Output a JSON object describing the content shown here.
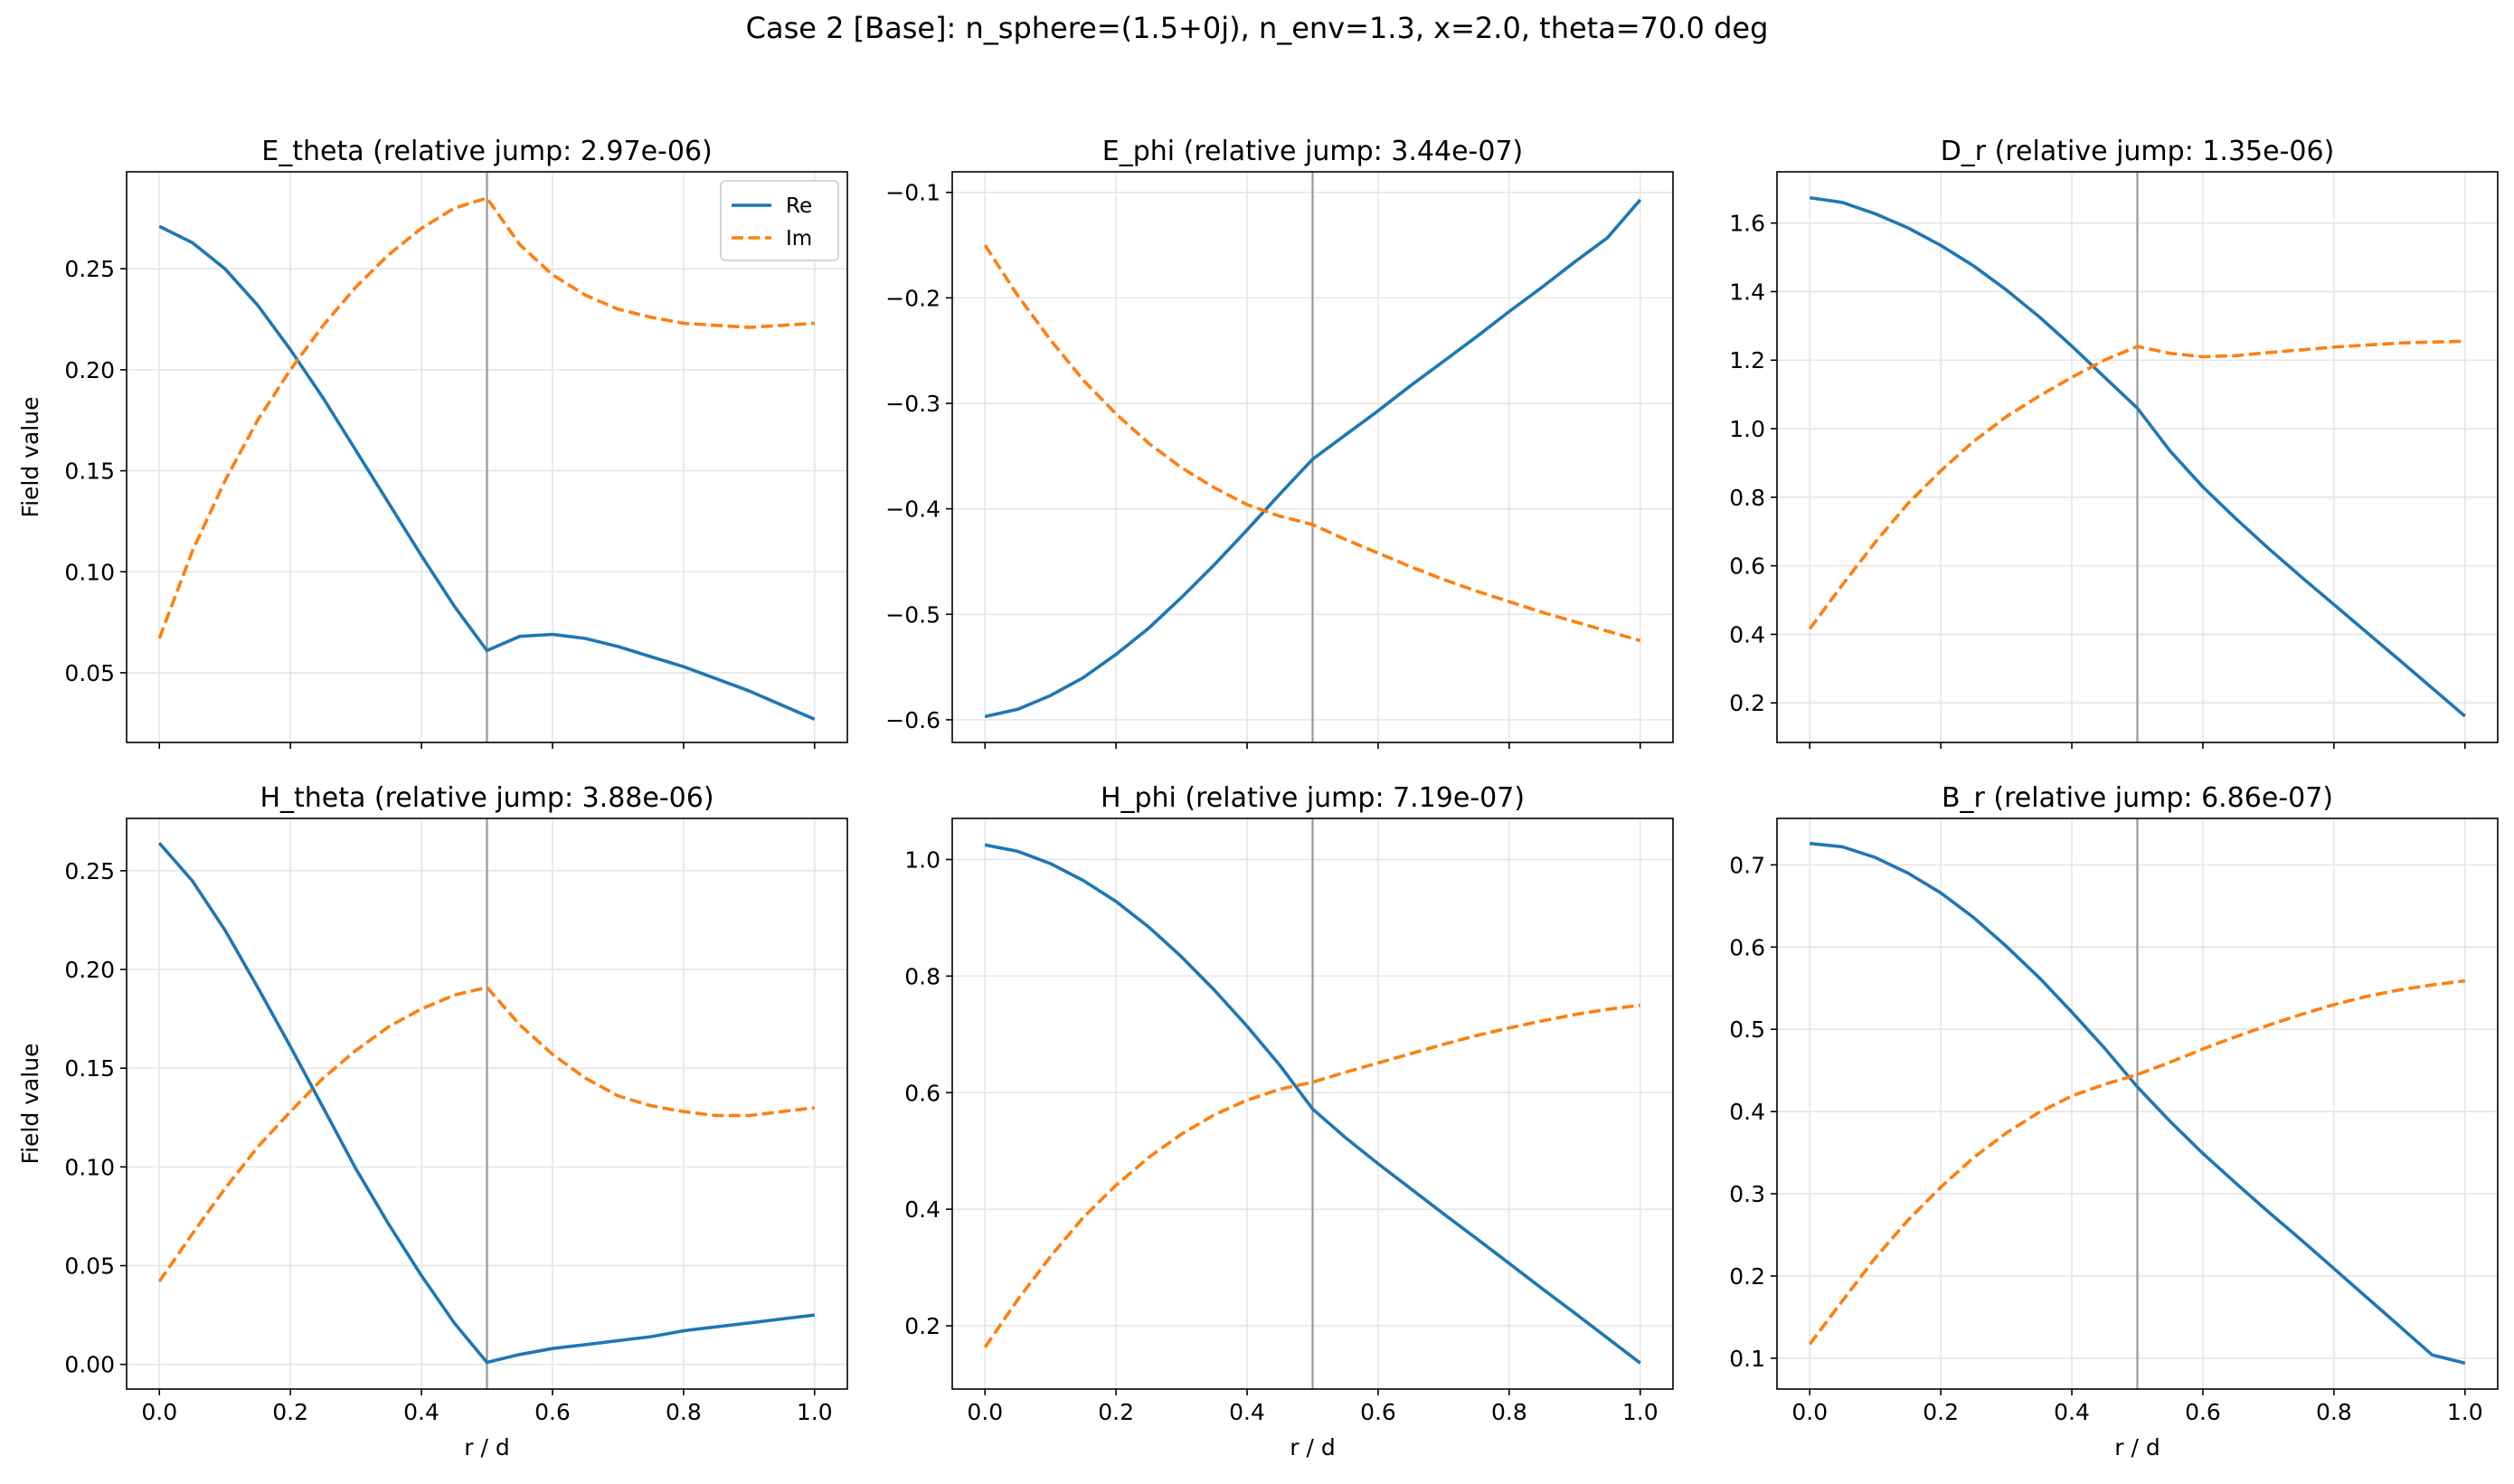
{
  "suptitle": "Case 2 [Base]: n_sphere=(1.5+0j), n_env=1.3, x=2.0, theta=70.0 deg",
  "colors": {
    "re": "#1f77b4",
    "im": "#ff7f0e",
    "grid": "#e6e6e6",
    "interface": "#999999"
  },
  "legend": {
    "re": "Re",
    "im": "Im",
    "placement": "upper right (first panel only)"
  },
  "chart_data": [
    {
      "type": "line",
      "title": "E_theta (relative jump: 2.97e-06)",
      "xlabel": "",
      "ylabel": "Field value",
      "xlim": [
        -0.05,
        1.05
      ],
      "ylim": [
        0.0155,
        0.298
      ],
      "yticks": [
        0.05,
        0.1,
        0.15,
        0.2,
        0.25
      ],
      "ytick_labels": [
        "0.05",
        "0.10",
        "0.15",
        "0.20",
        "0.25"
      ],
      "xticks": [
        0,
        0.2,
        0.4,
        0.6,
        0.8,
        1.0
      ],
      "xtick_labels": [],
      "interface_x": 0.5,
      "grid": true,
      "legend": true,
      "x": [
        0,
        0.05,
        0.1,
        0.15,
        0.2,
        0.25,
        0.3,
        0.35,
        0.4,
        0.45,
        0.5,
        0.55,
        0.6,
        0.65,
        0.7,
        0.75,
        0.8,
        0.85,
        0.9,
        0.95,
        1.0
      ],
      "series": [
        {
          "name": "Re",
          "style": "solid",
          "values": [
            0.271,
            0.263,
            0.25,
            0.232,
            0.21,
            0.186,
            0.16,
            0.134,
            0.108,
            0.083,
            0.061,
            0.068,
            0.069,
            0.067,
            0.063,
            0.058,
            0.053,
            0.047,
            0.041,
            0.034,
            0.027
          ]
        },
        {
          "name": "Im",
          "style": "dashed",
          "values": [
            0.067,
            0.11,
            0.145,
            0.175,
            0.2,
            0.222,
            0.241,
            0.257,
            0.27,
            0.28,
            0.285,
            0.262,
            0.247,
            0.237,
            0.23,
            0.226,
            0.223,
            0.222,
            0.221,
            0.222,
            0.223
          ]
        }
      ]
    },
    {
      "type": "line",
      "title": "E_phi (relative jump: 3.44e-07)",
      "xlabel": "",
      "ylabel": "",
      "xlim": [
        -0.05,
        1.05
      ],
      "ylim": [
        -0.6215,
        -0.0805
      ],
      "yticks": [
        -0.6,
        -0.5,
        -0.4,
        -0.3,
        -0.2,
        -0.1
      ],
      "ytick_labels": [
        "−0.6",
        "−0.5",
        "−0.4",
        "−0.3",
        "−0.2",
        "−0.1"
      ],
      "xticks": [
        0,
        0.2,
        0.4,
        0.6,
        0.8,
        1.0
      ],
      "xtick_labels": [],
      "interface_x": 0.5,
      "grid": true,
      "legend": false,
      "x": [
        0,
        0.05,
        0.1,
        0.15,
        0.2,
        0.25,
        0.3,
        0.35,
        0.4,
        0.45,
        0.5,
        0.55,
        0.6,
        0.65,
        0.7,
        0.75,
        0.8,
        0.85,
        0.9,
        0.95,
        1.0
      ],
      "series": [
        {
          "name": "Re",
          "style": "solid",
          "values": [
            -0.597,
            -0.59,
            -0.577,
            -0.56,
            -0.538,
            -0.513,
            -0.484,
            -0.453,
            -0.42,
            -0.386,
            -0.353,
            -0.33,
            -0.307,
            -0.283,
            -0.26,
            -0.237,
            -0.213,
            -0.19,
            -0.166,
            -0.143,
            -0.107
          ]
        },
        {
          "name": "Im",
          "style": "dashed",
          "values": [
            -0.15,
            -0.198,
            -0.24,
            -0.278,
            -0.31,
            -0.338,
            -0.361,
            -0.38,
            -0.396,
            -0.407,
            -0.415,
            -0.429,
            -0.442,
            -0.455,
            -0.467,
            -0.478,
            -0.488,
            -0.498,
            -0.507,
            -0.516,
            -0.525
          ]
        }
      ]
    },
    {
      "type": "line",
      "title": "D_r (relative jump: 1.35e-06)",
      "xlabel": "",
      "ylabel": "",
      "xlim": [
        -0.05,
        1.05
      ],
      "ylim": [
        0.0845,
        1.7495
      ],
      "yticks": [
        0.2,
        0.4,
        0.6,
        0.8,
        1.0,
        1.2,
        1.4,
        1.6
      ],
      "ytick_labels": [
        "0.2",
        "0.4",
        "0.6",
        "0.8",
        "1.0",
        "1.2",
        "1.4",
        "1.6"
      ],
      "xticks": [
        0,
        0.2,
        0.4,
        0.6,
        0.8,
        1.0
      ],
      "xtick_labels": [],
      "interface_x": 0.5,
      "grid": true,
      "legend": false,
      "x": [
        0,
        0.05,
        0.1,
        0.15,
        0.2,
        0.25,
        0.3,
        0.35,
        0.4,
        0.45,
        0.5,
        0.55,
        0.6,
        0.65,
        0.7,
        0.75,
        0.8,
        0.85,
        0.9,
        0.95,
        1.0
      ],
      "series": [
        {
          "name": "Re",
          "style": "solid",
          "values": [
            1.674,
            1.66,
            1.627,
            1.586,
            1.535,
            1.475,
            1.405,
            1.327,
            1.241,
            1.15,
            1.06,
            0.935,
            0.83,
            0.738,
            0.651,
            0.568,
            0.487,
            0.406,
            0.325,
            0.243,
            0.161
          ]
        },
        {
          "name": "Im",
          "style": "dashed",
          "values": [
            0.416,
            0.545,
            0.669,
            0.782,
            0.877,
            0.963,
            1.035,
            1.095,
            1.15,
            1.2,
            1.24,
            1.22,
            1.21,
            1.213,
            1.222,
            1.23,
            1.238,
            1.244,
            1.25,
            1.253,
            1.255
          ]
        }
      ]
    },
    {
      "type": "line",
      "title": "H_theta (relative jump: 3.88e-06)",
      "xlabel": "r / d",
      "ylabel": "Field value",
      "xlim": [
        -0.05,
        1.05
      ],
      "ylim": [
        -0.0125,
        0.2765
      ],
      "yticks": [
        0.0,
        0.05,
        0.1,
        0.15,
        0.2,
        0.25
      ],
      "ytick_labels": [
        "0.00",
        "0.05",
        "0.10",
        "0.15",
        "0.20",
        "0.25"
      ],
      "xticks": [
        0,
        0.2,
        0.4,
        0.6,
        0.8,
        1.0
      ],
      "xtick_labels": [
        "0.0",
        "0.2",
        "0.4",
        "0.6",
        "0.8",
        "1.0"
      ],
      "interface_x": 0.5,
      "grid": true,
      "legend": false,
      "x": [
        0,
        0.05,
        0.1,
        0.15,
        0.2,
        0.25,
        0.3,
        0.35,
        0.4,
        0.45,
        0.5,
        0.55,
        0.6,
        0.65,
        0.7,
        0.75,
        0.8,
        0.85,
        0.9,
        0.95,
        1.0
      ],
      "series": [
        {
          "name": "Re",
          "style": "solid",
          "values": [
            0.264,
            0.245,
            0.22,
            0.191,
            0.161,
            0.13,
            0.099,
            0.071,
            0.045,
            0.021,
            0.001,
            0.005,
            0.008,
            0.01,
            0.012,
            0.014,
            0.017,
            0.019,
            0.021,
            0.023,
            0.025
          ]
        },
        {
          "name": "Im",
          "style": "dashed",
          "values": [
            0.042,
            0.066,
            0.089,
            0.11,
            0.128,
            0.145,
            0.159,
            0.171,
            0.18,
            0.187,
            0.191,
            0.172,
            0.157,
            0.145,
            0.136,
            0.131,
            0.128,
            0.126,
            0.126,
            0.128,
            0.13
          ]
        }
      ]
    },
    {
      "type": "line",
      "title": "H_phi (relative jump: 7.19e-07)",
      "xlabel": "r / d",
      "ylabel": "",
      "xlim": [
        -0.05,
        1.05
      ],
      "ylim": [
        0.0915,
        1.0705
      ],
      "yticks": [
        0.2,
        0.4,
        0.6,
        0.8,
        1.0
      ],
      "ytick_labels": [
        "0.2",
        "0.4",
        "0.6",
        "0.8",
        "1.0"
      ],
      "xticks": [
        0,
        0.2,
        0.4,
        0.6,
        0.8,
        1.0
      ],
      "xtick_labels": [
        "0.0",
        "0.2",
        "0.4",
        "0.6",
        "0.8",
        "1.0"
      ],
      "interface_x": 0.5,
      "grid": true,
      "legend": false,
      "x": [
        0,
        0.05,
        0.1,
        0.15,
        0.2,
        0.25,
        0.3,
        0.35,
        0.4,
        0.45,
        0.5,
        0.55,
        0.6,
        0.65,
        0.7,
        0.75,
        0.8,
        0.85,
        0.9,
        0.95,
        1.0
      ],
      "series": [
        {
          "name": "Re",
          "style": "solid",
          "values": [
            1.025,
            1.014,
            0.993,
            0.964,
            0.928,
            0.884,
            0.833,
            0.776,
            0.714,
            0.647,
            0.572,
            0.523,
            0.478,
            0.435,
            0.392,
            0.35,
            0.307,
            0.264,
            0.222,
            0.179,
            0.136
          ]
        },
        {
          "name": "Im",
          "style": "dashed",
          "values": [
            0.163,
            0.245,
            0.319,
            0.386,
            0.441,
            0.489,
            0.529,
            0.562,
            0.587,
            0.606,
            0.618,
            0.635,
            0.651,
            0.667,
            0.683,
            0.698,
            0.711,
            0.723,
            0.734,
            0.743,
            0.75
          ]
        }
      ]
    },
    {
      "type": "line",
      "title": "B_r (relative jump: 6.86e-07)",
      "xlabel": "r / d",
      "ylabel": "",
      "xlim": [
        -0.05,
        1.05
      ],
      "ylim": [
        0.0625,
        0.7565
      ],
      "yticks": [
        0.1,
        0.2,
        0.3,
        0.4,
        0.5,
        0.6,
        0.7
      ],
      "ytick_labels": [
        "0.1",
        "0.2",
        "0.3",
        "0.4",
        "0.5",
        "0.6",
        "0.7"
      ],
      "xticks": [
        0,
        0.2,
        0.4,
        0.6,
        0.8,
        1.0
      ],
      "xtick_labels": [
        "0.0",
        "0.2",
        "0.4",
        "0.6",
        "0.8",
        "1.0"
      ],
      "interface_x": 0.5,
      "grid": true,
      "legend": false,
      "x": [
        0,
        0.05,
        0.1,
        0.15,
        0.2,
        0.25,
        0.3,
        0.35,
        0.4,
        0.45,
        0.5,
        0.55,
        0.6,
        0.65,
        0.7,
        0.75,
        0.8,
        0.85,
        0.9,
        0.95,
        1.0
      ],
      "series": [
        {
          "name": "Re",
          "style": "solid",
          "values": [
            0.726,
            0.722,
            0.709,
            0.69,
            0.666,
            0.636,
            0.601,
            0.563,
            0.521,
            0.477,
            0.43,
            0.388,
            0.349,
            0.313,
            0.278,
            0.244,
            0.209,
            0.174,
            0.139,
            0.104,
            0.094
          ]
        },
        {
          "name": "Im",
          "style": "dashed",
          "values": [
            0.117,
            0.17,
            0.222,
            0.268,
            0.308,
            0.344,
            0.374,
            0.399,
            0.419,
            0.433,
            0.445,
            0.46,
            0.476,
            0.491,
            0.505,
            0.518,
            0.53,
            0.54,
            0.548,
            0.554,
            0.559
          ]
        }
      ]
    }
  ]
}
